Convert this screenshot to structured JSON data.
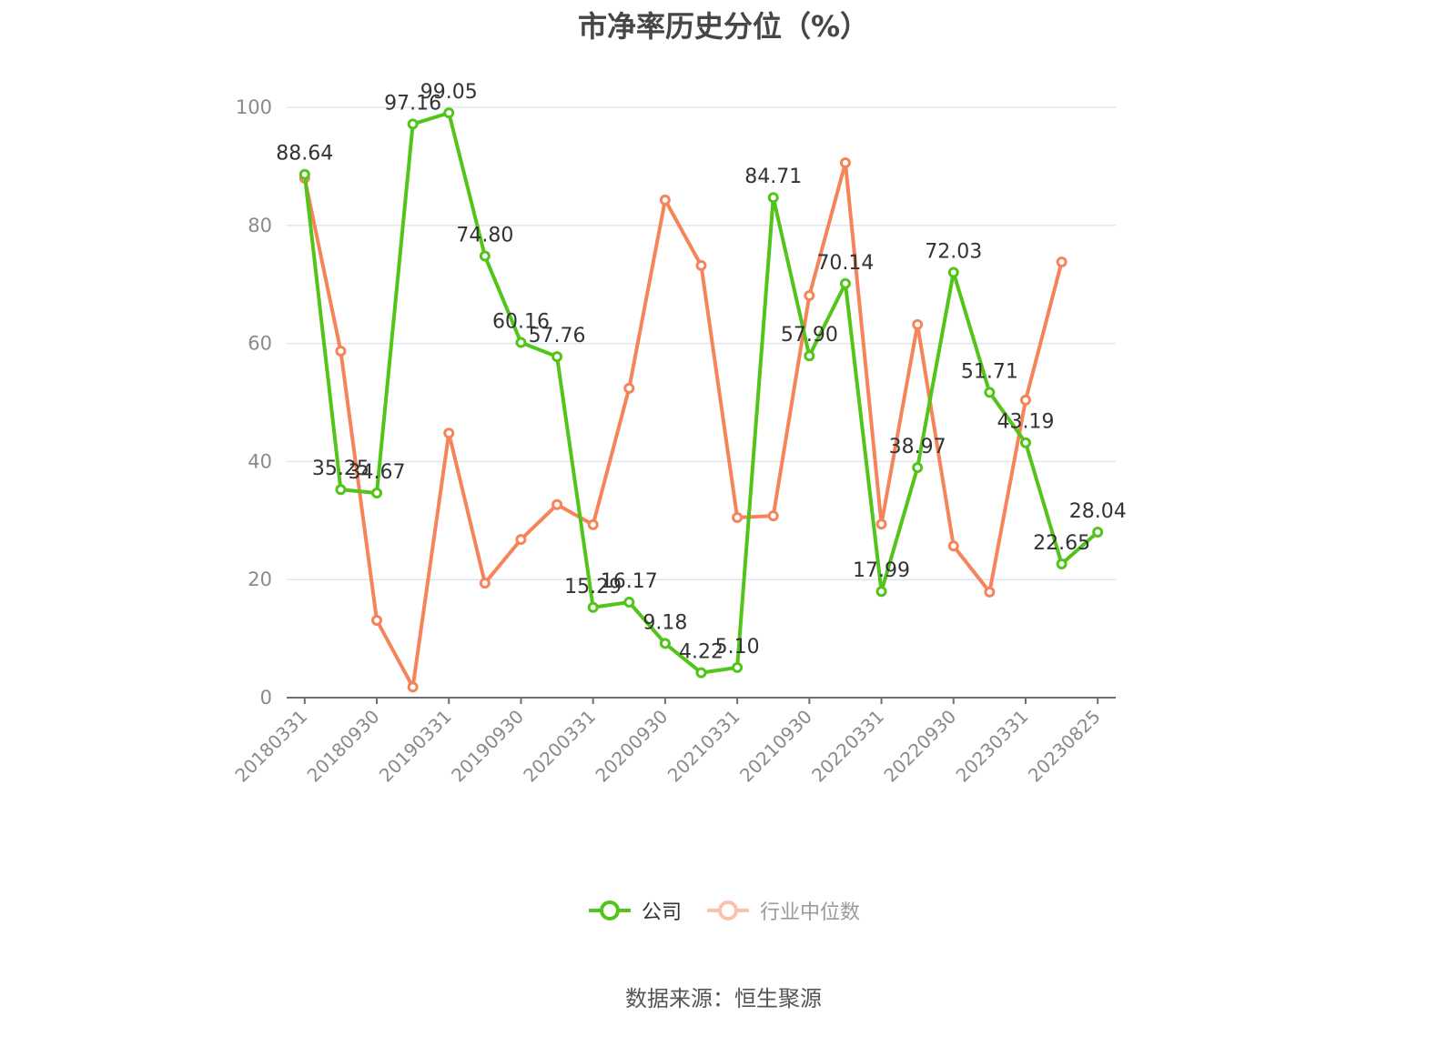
{
  "title": "市净率历史分位（%）",
  "source": "数据来源：恒生聚源",
  "legend": [
    {
      "name": "公司",
      "color": "#52c41a",
      "active": true
    },
    {
      "name": "行业中位数",
      "color": "#f5845a",
      "active": false
    }
  ],
  "chart_data": {
    "type": "line",
    "title": "市净率历史分位（%）",
    "xlabel": "",
    "ylabel": "",
    "ylim": [
      0,
      100
    ],
    "yticks": [
      0,
      20,
      40,
      60,
      80,
      100
    ],
    "grid": true,
    "legend_position": "bottom",
    "x": [
      "20180331",
      "20180630",
      "20180930",
      "20181231",
      "20190331",
      "20190630",
      "20190930",
      "20191231",
      "20200331",
      "20200630",
      "20200930",
      "20201231",
      "20210331",
      "20210630",
      "20210930",
      "20211231",
      "20220331",
      "20220630",
      "20220930",
      "20221231",
      "20230331",
      "20230630",
      "20230825"
    ],
    "xtick_labels": [
      "20180331",
      "20180930",
      "20190331",
      "20190930",
      "20200331",
      "20200930",
      "20210331",
      "20210930",
      "20220331",
      "20220930",
      "20230331",
      "20230825"
    ],
    "series": [
      {
        "name": "公司",
        "color": "#52c41a",
        "labels": true,
        "values": [
          88.64,
          35.25,
          34.67,
          97.16,
          99.05,
          74.8,
          60.16,
          57.76,
          15.29,
          16.17,
          9.18,
          4.22,
          5.1,
          84.71,
          57.9,
          70.14,
          17.99,
          38.97,
          72.03,
          51.71,
          43.19,
          22.65,
          28.04
        ]
      },
      {
        "name": "行业中位数",
        "color": "#f5845a",
        "labels": false,
        "values": [
          88.0,
          58.7,
          13.1,
          1.8,
          44.8,
          19.4,
          26.8,
          32.7,
          29.3,
          52.4,
          84.3,
          73.2,
          30.5,
          30.8,
          68.1,
          90.6,
          29.4,
          63.2,
          25.7,
          17.9,
          50.4,
          73.8,
          null
        ]
      }
    ],
    "annotations": []
  }
}
